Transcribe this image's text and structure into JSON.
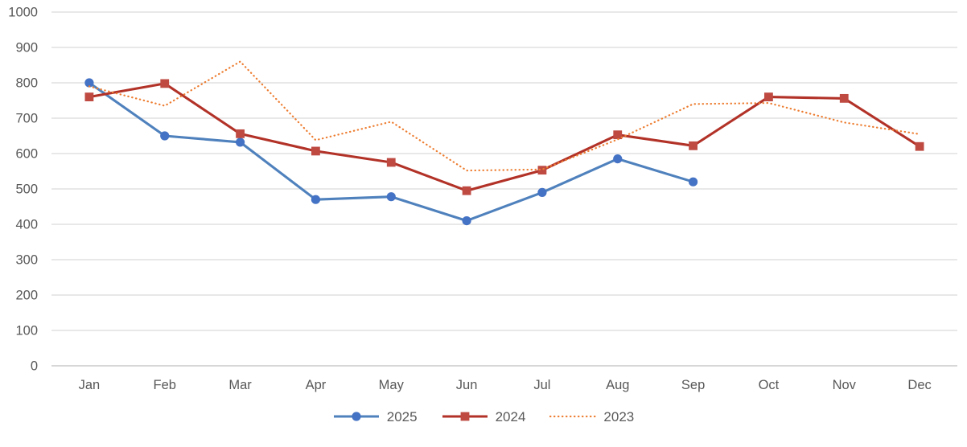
{
  "chart_data": {
    "type": "line",
    "title": "",
    "xlabel": "",
    "ylabel": "",
    "categories": [
      "Jan",
      "Feb",
      "Mar",
      "Apr",
      "May",
      "Jun",
      "Jul",
      "Aug",
      "Sep",
      "Oct",
      "Nov",
      "Dec"
    ],
    "series": [
      {
        "name": "2025",
        "line_color": "#4F81BD",
        "marker": "circle",
        "marker_color": "#4472C4",
        "line_style": "solid",
        "values": [
          800,
          650,
          632,
          470,
          478,
          410,
          490,
          585,
          520,
          null,
          null,
          null
        ]
      },
      {
        "name": "2024",
        "line_color": "#B23228",
        "marker": "square",
        "marker_color": "#BE4A42",
        "line_style": "solid",
        "values": [
          760,
          798,
          656,
          607,
          575,
          495,
          553,
          653,
          622,
          760,
          756,
          620
        ]
      },
      {
        "name": "2023",
        "line_color": "#ED7D31",
        "marker": "none",
        "marker_color": "#ED7D31",
        "line_style": "dotted",
        "values": [
          790,
          735,
          860,
          638,
          690,
          552,
          555,
          640,
          740,
          743,
          688,
          655
        ]
      }
    ],
    "ylim": [
      0,
      1000
    ],
    "ytick_step": 100,
    "ytick_labels": [
      "0",
      "100",
      "200",
      "300",
      "400",
      "500",
      "600",
      "700",
      "800",
      "900",
      "1000"
    ],
    "grid": true,
    "legend_position": "bottom",
    "colors": {
      "gridline": "#D9D9D9",
      "axis_line": "#BFBFBF",
      "axis_text": "#595959",
      "background": "#FFFFFF"
    }
  }
}
